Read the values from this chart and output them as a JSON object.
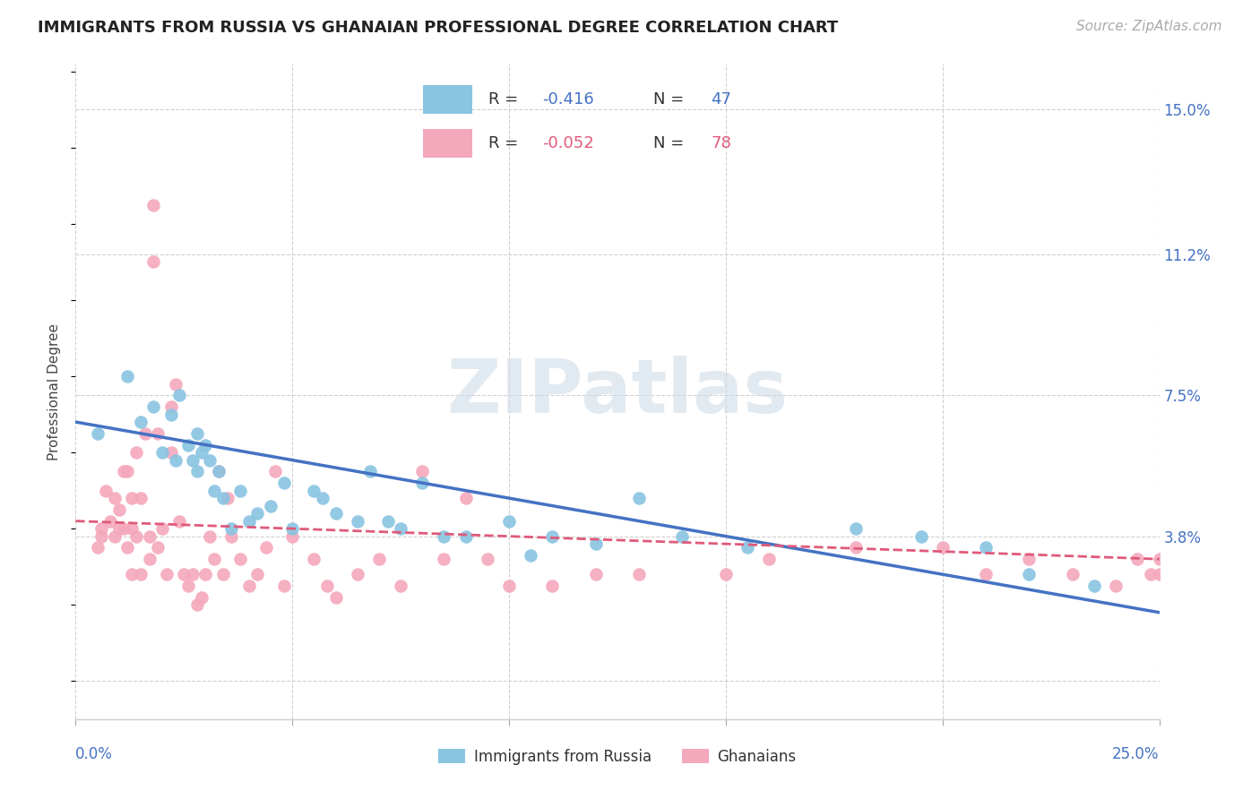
{
  "title": "IMMIGRANTS FROM RUSSIA VS GHANAIAN PROFESSIONAL DEGREE CORRELATION CHART",
  "source": "Source: ZipAtlas.com",
  "ylabel": "Professional Degree",
  "yticks": [
    0.0,
    0.038,
    0.075,
    0.112,
    0.15
  ],
  "ytick_labels": [
    "",
    "3.8%",
    "7.5%",
    "11.2%",
    "15.0%"
  ],
  "xlim": [
    0.0,
    0.25
  ],
  "ylim": [
    -0.01,
    0.162
  ],
  "blue_color": "#89c4e1",
  "pink_color": "#f4a8bc",
  "trend_blue": "#4472c4",
  "trend_pink": "#e05a7a",
  "watermark_color": "#d0dce8",
  "grid_color": "#d0d0d0",
  "background_color": "#ffffff",
  "title_fontsize": 13,
  "axis_label_fontsize": 11,
  "tick_label_fontsize": 12,
  "source_fontsize": 11,
  "blue_scatter_x": [
    0.005,
    0.012,
    0.015,
    0.018,
    0.02,
    0.022,
    0.023,
    0.024,
    0.026,
    0.027,
    0.028,
    0.028,
    0.029,
    0.03,
    0.031,
    0.032,
    0.033,
    0.034,
    0.036,
    0.038,
    0.04,
    0.042,
    0.045,
    0.048,
    0.05,
    0.055,
    0.057,
    0.06,
    0.065,
    0.068,
    0.072,
    0.075,
    0.08,
    0.085,
    0.09,
    0.1,
    0.105,
    0.11,
    0.12,
    0.13,
    0.14,
    0.155,
    0.18,
    0.195,
    0.21,
    0.22,
    0.235
  ],
  "blue_scatter_y": [
    0.065,
    0.08,
    0.068,
    0.072,
    0.06,
    0.07,
    0.058,
    0.075,
    0.062,
    0.058,
    0.055,
    0.065,
    0.06,
    0.062,
    0.058,
    0.05,
    0.055,
    0.048,
    0.04,
    0.05,
    0.042,
    0.044,
    0.046,
    0.052,
    0.04,
    0.05,
    0.048,
    0.044,
    0.042,
    0.055,
    0.042,
    0.04,
    0.052,
    0.038,
    0.038,
    0.042,
    0.033,
    0.038,
    0.036,
    0.048,
    0.038,
    0.035,
    0.04,
    0.038,
    0.035,
    0.028,
    0.025
  ],
  "pink_scatter_x": [
    0.005,
    0.006,
    0.006,
    0.007,
    0.008,
    0.009,
    0.009,
    0.01,
    0.01,
    0.011,
    0.011,
    0.012,
    0.012,
    0.013,
    0.013,
    0.013,
    0.014,
    0.014,
    0.015,
    0.015,
    0.016,
    0.017,
    0.017,
    0.018,
    0.018,
    0.019,
    0.019,
    0.02,
    0.021,
    0.022,
    0.022,
    0.023,
    0.024,
    0.025,
    0.026,
    0.027,
    0.028,
    0.029,
    0.03,
    0.031,
    0.032,
    0.033,
    0.034,
    0.035,
    0.036,
    0.038,
    0.04,
    0.042,
    0.044,
    0.046,
    0.048,
    0.05,
    0.055,
    0.058,
    0.06,
    0.065,
    0.07,
    0.075,
    0.08,
    0.085,
    0.09,
    0.095,
    0.1,
    0.11,
    0.12,
    0.13,
    0.15,
    0.16,
    0.18,
    0.2,
    0.21,
    0.22,
    0.23,
    0.24,
    0.245,
    0.248,
    0.25,
    0.25
  ],
  "pink_scatter_y": [
    0.035,
    0.04,
    0.038,
    0.05,
    0.042,
    0.048,
    0.038,
    0.045,
    0.04,
    0.055,
    0.04,
    0.035,
    0.055,
    0.048,
    0.04,
    0.028,
    0.06,
    0.038,
    0.048,
    0.028,
    0.065,
    0.038,
    0.032,
    0.125,
    0.11,
    0.065,
    0.035,
    0.04,
    0.028,
    0.072,
    0.06,
    0.078,
    0.042,
    0.028,
    0.025,
    0.028,
    0.02,
    0.022,
    0.028,
    0.038,
    0.032,
    0.055,
    0.028,
    0.048,
    0.038,
    0.032,
    0.025,
    0.028,
    0.035,
    0.055,
    0.025,
    0.038,
    0.032,
    0.025,
    0.022,
    0.028,
    0.032,
    0.025,
    0.055,
    0.032,
    0.048,
    0.032,
    0.025,
    0.025,
    0.028,
    0.028,
    0.028,
    0.032,
    0.035,
    0.035,
    0.028,
    0.032,
    0.028,
    0.025,
    0.032,
    0.028,
    0.032,
    0.028
  ],
  "blue_trend_x": [
    0.0,
    0.25
  ],
  "blue_trend_y": [
    0.068,
    0.018
  ],
  "pink_trend_x": [
    0.0,
    0.25
  ],
  "pink_trend_y": [
    0.042,
    0.032
  ],
  "legend_blue_r": "-0.416",
  "legend_blue_n": "47",
  "legend_pink_r": "-0.052",
  "legend_pink_n": "78",
  "bottom_legend_labels": [
    "Immigrants from Russia",
    "Ghanaians"
  ]
}
